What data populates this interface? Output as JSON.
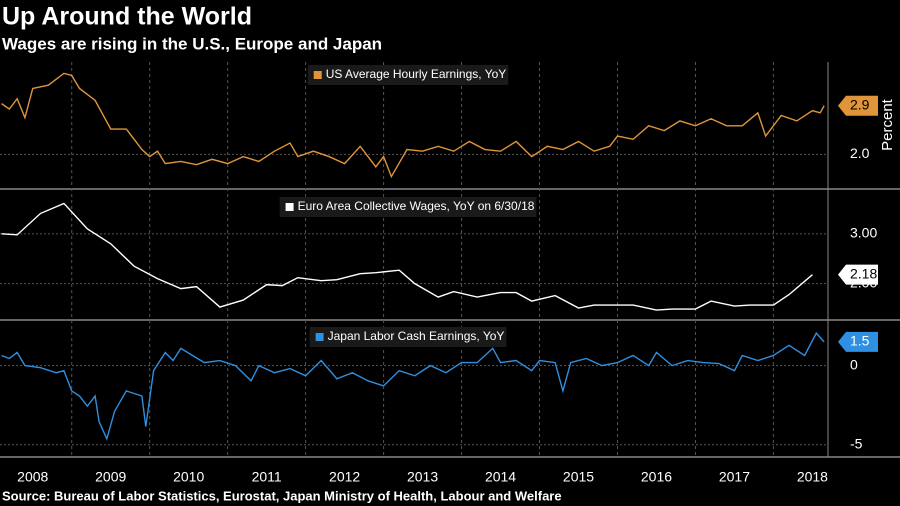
{
  "title": "Up Around the World",
  "subtitle": "Wages are rising in the U.S., Europe and Japan",
  "source": "Source: Bureau of Labor Statistics, Eurostat, Japan Ministry of Health, Labour and Welfare",
  "x_axis": {
    "xlim": [
      2008.08,
      2018.7
    ],
    "categories": [
      "2008",
      "2009",
      "2010",
      "2011",
      "2012",
      "2013",
      "2014",
      "2015",
      "2016",
      "2017",
      "2018"
    ]
  },
  "chart_data": [
    {
      "type": "line",
      "ylabel": "Percent",
      "ylim": [
        1.36,
        3.71
      ],
      "yticks": [
        {
          "value": 2,
          "label": "2.0"
        }
      ],
      "grid": true,
      "series": [
        {
          "name": "US Average Hourly Earnings, YoY",
          "color": "#e0953a",
          "x": [
            2008.1,
            2008.2,
            2008.3,
            2008.4,
            2008.5,
            2008.7,
            2008.9,
            2009.0,
            2009.1,
            2009.3,
            2009.5,
            2009.7,
            2009.9,
            2010.0,
            2010.1,
            2010.2,
            2010.4,
            2010.6,
            2010.8,
            2011.0,
            2011.2,
            2011.4,
            2011.6,
            2011.8,
            2011.9,
            2012.1,
            2012.3,
            2012.5,
            2012.7,
            2012.9,
            2013.0,
            2013.1,
            2013.3,
            2013.5,
            2013.7,
            2013.9,
            2014.1,
            2014.3,
            2014.5,
            2014.7,
            2014.9,
            2015.1,
            2015.3,
            2015.5,
            2015.7,
            2015.9,
            2016.0,
            2016.2,
            2016.4,
            2016.6,
            2016.8,
            2017.0,
            2017.2,
            2017.4,
            2017.6,
            2017.8,
            2017.9,
            2018.1,
            2018.3,
            2018.5,
            2018.6,
            2018.65
          ],
          "values": [
            2.94,
            2.84,
            3.03,
            2.68,
            3.22,
            3.28,
            3.5,
            3.46,
            3.22,
            3.0,
            2.47,
            2.47,
            2.09,
            1.96,
            2.06,
            1.83,
            1.87,
            1.81,
            1.91,
            1.83,
            1.96,
            1.87,
            2.06,
            2.21,
            1.96,
            2.06,
            1.96,
            1.83,
            2.15,
            1.77,
            1.96,
            1.59,
            2.09,
            2.06,
            2.15,
            2.06,
            2.24,
            2.09,
            2.06,
            2.24,
            1.96,
            2.15,
            2.09,
            2.24,
            2.06,
            2.15,
            2.34,
            2.28,
            2.53,
            2.44,
            2.62,
            2.53,
            2.66,
            2.53,
            2.53,
            2.77,
            2.34,
            2.72,
            2.62,
            2.81,
            2.77,
            2.9
          ]
        }
      ]
    },
    {
      "type": "line",
      "ylim": [
        1.27,
        3.84
      ],
      "yticks": [
        {
          "value": 3,
          "label": "3.00"
        },
        {
          "value": 2,
          "label": "2.00"
        }
      ],
      "grid": true,
      "series": [
        {
          "name": "Euro Area Collective Wages, YoY on 6/30/18",
          "color": "#ffffff",
          "x": [
            2008.1,
            2008.3,
            2008.6,
            2008.9,
            2009.2,
            2009.5,
            2009.8,
            2010.1,
            2010.4,
            2010.6,
            2010.9,
            2011.2,
            2011.5,
            2011.7,
            2011.9,
            2012.2,
            2012.4,
            2012.7,
            2012.9,
            2013.2,
            2013.4,
            2013.7,
            2013.9,
            2014.2,
            2014.5,
            2014.7,
            2014.9,
            2015.2,
            2015.5,
            2015.7,
            2016.0,
            2016.2,
            2016.5,
            2016.7,
            2017.0,
            2017.2,
            2017.5,
            2017.7,
            2018.0,
            2018.2,
            2018.5
          ],
          "values": [
            3.0,
            2.98,
            3.41,
            3.61,
            3.1,
            2.8,
            2.35,
            2.1,
            1.9,
            1.94,
            1.53,
            1.67,
            1.98,
            1.96,
            2.12,
            2.06,
            2.08,
            2.2,
            2.22,
            2.27,
            2.0,
            1.73,
            1.84,
            1.73,
            1.82,
            1.82,
            1.65,
            1.76,
            1.51,
            1.57,
            1.57,
            1.57,
            1.47,
            1.49,
            1.49,
            1.65,
            1.55,
            1.57,
            1.57,
            1.78,
            2.18
          ]
        }
      ]
    },
    {
      "type": "line",
      "ylim": [
        -5.77,
        2.69
      ],
      "yticks": [
        0,
        -5
      ],
      "grid": true,
      "series": [
        {
          "name": "Japan Labor Cash Earnings, YoY",
          "color": "#2f8fe0",
          "x": [
            2008.1,
            2008.2,
            2008.3,
            2008.4,
            2008.6,
            2008.8,
            2008.9,
            2009.0,
            2009.1,
            2009.2,
            2009.3,
            2009.35,
            2009.45,
            2009.55,
            2009.7,
            2009.9,
            2009.95,
            2010.05,
            2010.2,
            2010.3,
            2010.4,
            2010.55,
            2010.7,
            2010.9,
            2011.1,
            2011.3,
            2011.4,
            2011.6,
            2011.8,
            2012.0,
            2012.2,
            2012.4,
            2012.6,
            2012.8,
            2013.0,
            2013.2,
            2013.4,
            2013.6,
            2013.8,
            2014.0,
            2014.2,
            2014.4,
            2014.5,
            2014.7,
            2014.9,
            2015.0,
            2015.2,
            2015.3,
            2015.4,
            2015.6,
            2015.8,
            2016.0,
            2016.2,
            2016.4,
            2016.5,
            2016.7,
            2016.9,
            2017.1,
            2017.3,
            2017.5,
            2017.6,
            2017.8,
            2018.0,
            2018.2,
            2018.4,
            2018.55,
            2018.65
          ],
          "values": [
            0.64,
            0.45,
            0.83,
            0,
            -0.13,
            -0.45,
            -0.32,
            -1.6,
            -1.92,
            -2.56,
            -1.92,
            -3.53,
            -4.62,
            -2.88,
            -1.6,
            -1.92,
            -3.85,
            -0.32,
            0.83,
            0.32,
            1.09,
            0.64,
            0.19,
            0.32,
            0,
            -0.96,
            0,
            -0.45,
            -0.19,
            -0.64,
            0.32,
            -0.83,
            -0.45,
            -0.96,
            -1.28,
            -0.32,
            -0.64,
            0,
            -0.45,
            0.19,
            0.19,
            1.09,
            0.19,
            0.32,
            -0.32,
            0.32,
            0.19,
            -1.6,
            0.19,
            0.45,
            0,
            0.19,
            0.64,
            0,
            0.83,
            0,
            0.32,
            0.19,
            0.13,
            -0.32,
            0.64,
            0.32,
            0.64,
            1.28,
            0.64,
            2.05,
            1.5
          ]
        }
      ]
    }
  ]
}
